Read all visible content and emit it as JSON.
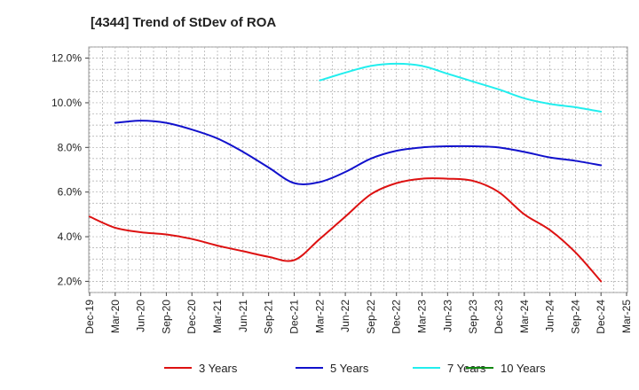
{
  "chart_data": {
    "type": "line",
    "title": "[4344]  Trend of StDev of ROA",
    "xlabel": "",
    "ylabel": "",
    "ylim": [
      1.5,
      12.5
    ],
    "y_ticks": [
      2.0,
      4.0,
      6.0,
      8.0,
      10.0,
      12.0
    ],
    "y_tick_labels": [
      "2.0%",
      "4.0%",
      "6.0%",
      "8.0%",
      "10.0%",
      "12.0%"
    ],
    "x_tick_labels": [
      "Dec-19",
      "Mar-20",
      "Jun-20",
      "Sep-20",
      "Dec-20",
      "Mar-21",
      "Jun-21",
      "Sep-21",
      "Dec-21",
      "Mar-22",
      "Jun-22",
      "Sep-22",
      "Dec-22",
      "Mar-23",
      "Jun-23",
      "Sep-23",
      "Dec-23",
      "Mar-24",
      "Jun-24",
      "Sep-24",
      "Dec-24",
      "Mar-25"
    ],
    "grid": true,
    "legend_position": "bottom",
    "series": [
      {
        "name": "3 Years",
        "color": "#dd1111",
        "values": [
          4.9,
          4.4,
          4.2,
          4.1,
          3.9,
          3.6,
          3.35,
          3.1,
          2.95,
          3.9,
          4.9,
          5.9,
          6.4,
          6.6,
          6.6,
          6.5,
          6.0,
          5.0,
          4.3,
          3.3,
          2.0,
          null
        ]
      },
      {
        "name": "5 Years",
        "color": "#1111cc",
        "values": [
          null,
          9.1,
          9.2,
          9.1,
          8.8,
          8.4,
          7.8,
          7.1,
          6.4,
          6.45,
          6.9,
          7.5,
          7.85,
          8.0,
          8.05,
          8.05,
          8.0,
          7.8,
          7.55,
          7.4,
          7.2,
          null
        ]
      },
      {
        "name": "7 Years",
        "color": "#22eeee",
        "values": [
          null,
          null,
          null,
          null,
          null,
          null,
          null,
          null,
          null,
          11.0,
          11.35,
          11.65,
          11.75,
          11.65,
          11.3,
          10.95,
          10.6,
          10.2,
          9.95,
          9.8,
          9.6,
          null
        ]
      },
      {
        "name": "10 Years",
        "color": "#118811",
        "values": [
          null,
          null,
          null,
          null,
          null,
          null,
          null,
          null,
          null,
          null,
          null,
          null,
          null,
          null,
          null,
          null,
          null,
          null,
          null,
          null,
          null,
          null
        ]
      }
    ]
  }
}
